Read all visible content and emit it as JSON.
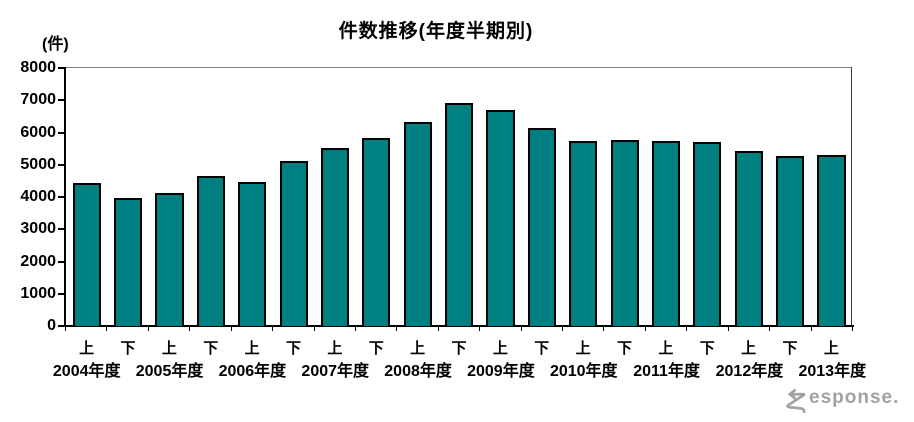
{
  "title": "件数推移(年度半期別)",
  "y_axis_unit": "(件)",
  "watermark": {
    "logo_icon": "response-logo-r-icon",
    "text": "esponse.",
    "color": "#a2a2a2"
  },
  "chart_data": {
    "type": "bar",
    "title": "件数推移(年度半期別)",
    "xlabel": "",
    "ylabel": "(件)",
    "ylim": [
      0,
      8000
    ],
    "y_ticks": [
      0,
      1000,
      2000,
      3000,
      4000,
      5000,
      6000,
      7000,
      8000
    ],
    "grid": false,
    "legend": false,
    "bar_color": "#008080",
    "bar_border_color": "#000000",
    "period_labels": [
      "上",
      "下",
      "上",
      "下",
      "上",
      "下",
      "上",
      "下",
      "上",
      "下",
      "上",
      "下",
      "上",
      "下",
      "上",
      "下",
      "上",
      "下",
      "上"
    ],
    "year_labels": [
      "2004年度",
      "2005年度",
      "2006年度",
      "2007年度",
      "2008年度",
      "2009年度",
      "2010年度",
      "2011年度",
      "2012年度",
      "2013年度"
    ],
    "categories": [
      "2004年度 上",
      "2004年度 下",
      "2005年度 上",
      "2005年度 下",
      "2006年度 上",
      "2006年度 下",
      "2007年度 上",
      "2007年度 下",
      "2008年度 上",
      "2008年度 下",
      "2009年度 上",
      "2009年度 下",
      "2010年度 上",
      "2010年度 下",
      "2011年度 上",
      "2011年度 下",
      "2012年度 上",
      "2012年度 下",
      "2013年度 上"
    ],
    "values": [
      4440,
      3960,
      4110,
      4640,
      4450,
      5110,
      5510,
      5830,
      6340,
      6900,
      6710,
      6140,
      5750,
      5760,
      5730,
      5700,
      5440,
      5260,
      5300
    ]
  }
}
